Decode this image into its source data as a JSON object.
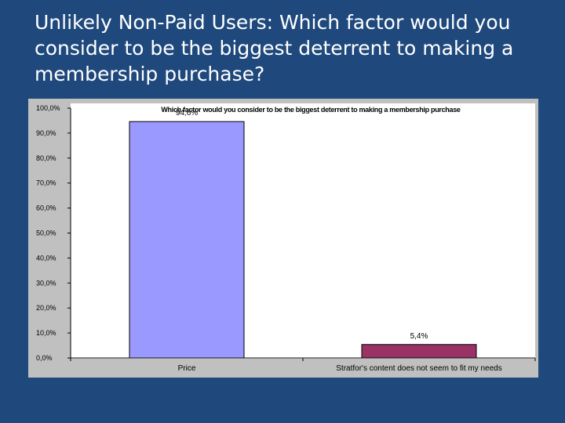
{
  "slide": {
    "title": "Unlikely Non-Paid Users: Which factor would you consider to be the biggest deterrent to making a membership purchase?"
  },
  "chart_data": {
    "type": "bar",
    "title": "Which factor would you consider to be the biggest deterrent to making a membership purchase",
    "categories": [
      "Price",
      "Stratfor's content does not seem to fit my needs"
    ],
    "values": [
      94.6,
      5.4
    ],
    "data_labels": [
      "94,6%",
      "5,4%"
    ],
    "y_tick_labels": [
      "0,0%",
      "10,0%",
      "20,0%",
      "30,0%",
      "40,0%",
      "50,0%",
      "60,0%",
      "70,0%",
      "80,0%",
      "90,0%",
      "100,0%"
    ],
    "ylim": [
      0,
      100
    ],
    "grid": false,
    "legend": "none",
    "colors": {
      "bars": [
        "#9999ff",
        "#993366"
      ],
      "plot_background": "#ffffff",
      "panel_background": "#c0c0c0"
    }
  }
}
